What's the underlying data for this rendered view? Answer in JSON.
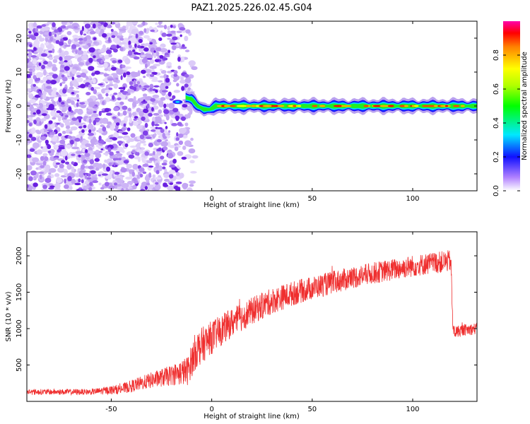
{
  "title": "PAZ1.2025.226.02.45.G04",
  "chart_data": [
    {
      "type": "heatmap",
      "title": "",
      "xlabel": "Height of straight line (km)",
      "ylabel": "Frequency (Hz)",
      "xlim": [
        -92,
        132
      ],
      "ylim": [
        -25,
        25
      ],
      "x_ticks": [
        -50,
        0,
        50,
        100
      ],
      "y_ticks": [
        -20,
        -10,
        0,
        10,
        20
      ],
      "colorbar": {
        "label": "Normalized spectral amplitude",
        "range": [
          0,
          1
        ],
        "ticks": [
          0.0,
          0.2,
          0.4,
          0.6,
          0.8
        ],
        "tick_labels": [
          "0.0",
          "0.2",
          "0.4",
          "0.6",
          "0.8"
        ]
      },
      "noise_region_x": [
        -92,
        -12
      ],
      "signal_line": {
        "x": [
          -13,
          -10,
          -7,
          -4,
          -1,
          2,
          10,
          20,
          40,
          60,
          80,
          100,
          120,
          132
        ],
        "frequency": [
          2.5,
          2.0,
          0.0,
          -1.0,
          -1.0,
          0.0,
          0.0,
          0.0,
          0.0,
          0.0,
          0.0,
          0.0,
          0.0,
          0.0
        ]
      },
      "grid": false
    },
    {
      "type": "line",
      "title": "",
      "xlabel": "Height of straight line (km)",
      "ylabel": "SNR (10 * v/v)",
      "xlim": [
        -92,
        132
      ],
      "ylim": [
        0,
        2330
      ],
      "x_ticks": [
        -50,
        0,
        50,
        100
      ],
      "y_ticks": [
        500,
        1000,
        1500,
        2000
      ],
      "series": [
        {
          "color": "#ef2f2f",
          "trend_x": [
            -92,
            -60,
            -45,
            -30,
            -20,
            -12,
            -8,
            0,
            10,
            20,
            30,
            40,
            50,
            60,
            70,
            80,
            90,
            100,
            110,
            119,
            120,
            121,
            125,
            132
          ],
          "trend_y": [
            130,
            130,
            170,
            290,
            360,
            420,
            700,
            880,
            1080,
            1240,
            1380,
            1480,
            1560,
            1630,
            1700,
            1760,
            1810,
            1860,
            1900,
            1930,
            1000,
            950,
            980,
            1000
          ],
          "noise_amplitude": [
            40,
            40,
            70,
            110,
            140,
            200,
            260,
            230,
            200,
            190,
            180,
            170,
            160,
            160,
            155,
            150,
            150,
            150,
            150,
            150,
            90,
            90,
            80,
            80
          ]
        }
      ],
      "grid": false
    }
  ]
}
